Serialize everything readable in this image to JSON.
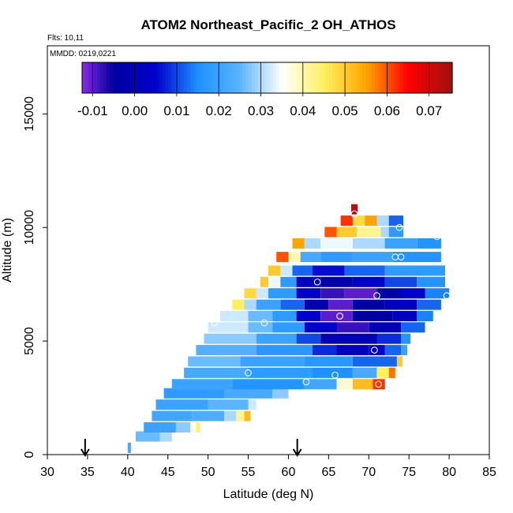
{
  "chart_data": {
    "type": "heatmap",
    "title": "ATOM2 Northeast_Pacific_2 OH_ATHOS",
    "flights_text": "Flts: 10,11",
    "mmdd_text": "MMDD: 0219,0221",
    "xlabel": "Latitude (deg N)",
    "ylabel": "Altitude (m)",
    "xlim": [
      30,
      85
    ],
    "ylim": [
      0,
      18000
    ],
    "x_ticks": [
      "30",
      "35",
      "40",
      "45",
      "50",
      "55",
      "60",
      "65",
      "70",
      "75",
      "80",
      "85"
    ],
    "y_ticks": [
      "0",
      "5000",
      "10000",
      "15000"
    ],
    "colorbar": {
      "range": [
        -0.0125,
        0.0755
      ],
      "ticks": [
        "-0.01",
        "0.00",
        "0.01",
        "0.02",
        "0.03",
        "0.04",
        "0.05",
        "0.06",
        "0.07"
      ],
      "colors": [
        "#8a2be2",
        "#0000a0",
        "#0000cd",
        "#1e90ff",
        "#5ab4ff",
        "#ffffff",
        "#fff060",
        "#ffa500",
        "#ff0000",
        "#a01010"
      ],
      "color_stops": [
        -0.0125,
        -0.005,
        0.005,
        0.015,
        0.025,
        0.035,
        0.045,
        0.055,
        0.065,
        0.0755
      ]
    },
    "flight_markers_latitude": [
      34.7,
      61.1
    ],
    "rows": [
      {
        "alt": 300,
        "segments": [
          {
            "lat": [
              40.0,
              40.4
            ],
            "value": 0.022
          }
        ]
      },
      {
        "alt": 800,
        "segments": [
          {
            "lat": [
              41.0,
              44.0
            ],
            "value": 0.026
          },
          {
            "lat": [
              44.0,
              45.5
            ],
            "value": 0.03
          }
        ]
      },
      {
        "alt": 1200,
        "segments": [
          {
            "lat": [
              42.0,
              46.0
            ],
            "value": 0.02
          },
          {
            "lat": [
              46.0,
              47.8
            ],
            "value": 0.028
          },
          {
            "lat": [
              47.8,
              48.5
            ],
            "value": 0.036
          },
          {
            "lat": [
              48.5,
              49.0
            ],
            "value": 0.044
          }
        ]
      },
      {
        "alt": 1700,
        "segments": [
          {
            "lat": [
              43.0,
              48.0
            ],
            "value": 0.021
          },
          {
            "lat": [
              48.0,
              52.0
            ],
            "value": 0.023
          },
          {
            "lat": [
              52.0,
              53.5
            ],
            "value": 0.03
          },
          {
            "lat": [
              53.5,
              54.5
            ],
            "value": 0.042
          },
          {
            "lat": [
              54.5,
              55.3
            ],
            "value": 0.052
          }
        ]
      },
      {
        "alt": 2200,
        "segments": [
          {
            "lat": [
              43.5,
              50.0
            ],
            "value": 0.02
          },
          {
            "lat": [
              50.0,
              55.0
            ],
            "value": 0.025
          },
          {
            "lat": [
              55.0,
              56.0
            ],
            "value": 0.032
          }
        ]
      },
      {
        "alt": 2700,
        "segments": [
          {
            "lat": [
              44.5,
              52.0
            ],
            "value": 0.018
          },
          {
            "lat": [
              52.0,
              58.0
            ],
            "value": 0.022
          },
          {
            "lat": [
              58.0,
              60.0
            ],
            "value": 0.028
          }
        ]
      },
      {
        "alt": 3100,
        "segments": [
          {
            "lat": [
              45.5,
              53.0
            ],
            "value": 0.02
          },
          {
            "lat": [
              53.0,
              62.0
            ],
            "value": 0.016
          },
          {
            "lat": [
              62.0,
              66.0
            ],
            "value": 0.021
          },
          {
            "lat": [
              66.0,
              68.0
            ],
            "value": 0.038
          },
          {
            "lat": [
              68.0,
              70.5
            ],
            "value": 0.052
          },
          {
            "lat": [
              70.5,
              72.0
            ],
            "value": 0.062
          }
        ]
      },
      {
        "alt": 3600,
        "segments": [
          {
            "lat": [
              47.0,
              55.0
            ],
            "value": 0.022
          },
          {
            "lat": [
              55.0,
              63.0
            ],
            "value": 0.018
          },
          {
            "lat": [
              63.0,
              68.0
            ],
            "value": 0.015
          },
          {
            "lat": [
              68.0,
              71.0
            ],
            "value": 0.022
          },
          {
            "lat": [
              71.0,
              72.5
            ],
            "value": 0.045
          },
          {
            "lat": [
              72.5,
              73.3
            ],
            "value": 0.058
          }
        ]
      },
      {
        "alt": 4100,
        "segments": [
          {
            "lat": [
              47.5,
              54.0
            ],
            "value": 0.026
          },
          {
            "lat": [
              54.0,
              62.0
            ],
            "value": 0.02
          },
          {
            "lat": [
              62.0,
              68.0
            ],
            "value": 0.017
          },
          {
            "lat": [
              68.0,
              73.5
            ],
            "value": 0.012
          },
          {
            "lat": [
              73.5,
              74.2
            ],
            "value": 0.05
          }
        ]
      },
      {
        "alt": 4600,
        "segments": [
          {
            "lat": [
              48.5,
              56.0
            ],
            "value": 0.024
          },
          {
            "lat": [
              56.0,
              63.0
            ],
            "value": 0.017
          },
          {
            "lat": [
              63.0,
              66.0
            ],
            "value": 0.008
          },
          {
            "lat": [
              66.0,
              70.0
            ],
            "value": 0.002
          },
          {
            "lat": [
              70.0,
              72.0
            ],
            "value": 0.005
          },
          {
            "lat": [
              72.0,
              74.0
            ],
            "value": 0.012
          },
          {
            "lat": [
              74.0,
              74.8
            ],
            "value": 0.02
          }
        ]
      },
      {
        "alt": 5100,
        "segments": [
          {
            "lat": [
              49.5,
              56.0
            ],
            "value": 0.028
          },
          {
            "lat": [
              56.0,
              61.0
            ],
            "value": 0.02
          },
          {
            "lat": [
              61.0,
              64.0
            ],
            "value": 0.01
          },
          {
            "lat": [
              64.0,
              71.0
            ],
            "value": 0.0
          },
          {
            "lat": [
              71.0,
              74.0
            ],
            "value": 0.008
          },
          {
            "lat": [
              74.0,
              75.2
            ],
            "value": 0.016
          }
        ]
      },
      {
        "alt": 5600,
        "segments": [
          {
            "lat": [
              50.0,
              55.0
            ],
            "value": 0.032
          },
          {
            "lat": [
              55.0,
              58.0
            ],
            "value": 0.026
          },
          {
            "lat": [
              58.0,
              62.0
            ],
            "value": 0.018
          },
          {
            "lat": [
              62.0,
              66.0
            ],
            "value": 0.004
          },
          {
            "lat": [
              66.0,
              70.0
            ],
            "value": -0.008
          },
          {
            "lat": [
              70.0,
              74.0
            ],
            "value": -0.001
          },
          {
            "lat": [
              74.0,
              77.0
            ],
            "value": 0.012
          }
        ]
      },
      {
        "alt": 6100,
        "segments": [
          {
            "lat": [
              51.5,
              55.0
            ],
            "value": 0.032
          },
          {
            "lat": [
              55.0,
              58.0
            ],
            "value": 0.026
          },
          {
            "lat": [
              58.0,
              61.0
            ],
            "value": 0.018
          },
          {
            "lat": [
              61.0,
              64.0
            ],
            "value": 0.005
          },
          {
            "lat": [
              64.0,
              68.0
            ],
            "value": -0.01
          },
          {
            "lat": [
              68.0,
              73.0
            ],
            "value": -0.005
          },
          {
            "lat": [
              73.0,
              76.0
            ],
            "value": 0.002
          },
          {
            "lat": [
              76.0,
              78.0
            ],
            "value": 0.014
          }
        ]
      },
      {
        "alt": 6600,
        "segments": [
          {
            "lat": [
              53.0,
              54.5
            ],
            "value": 0.045
          },
          {
            "lat": [
              54.5,
              56.0
            ],
            "value": 0.03
          },
          {
            "lat": [
              56.0,
              59.0
            ],
            "value": 0.02
          },
          {
            "lat": [
              59.0,
              62.0
            ],
            "value": 0.012
          },
          {
            "lat": [
              62.0,
              65.0
            ],
            "value": -0.002
          },
          {
            "lat": [
              65.0,
              68.0
            ],
            "value": -0.01
          },
          {
            "lat": [
              68.0,
              72.0
            ],
            "value": -0.003
          },
          {
            "lat": [
              72.0,
              76.0
            ],
            "value": 0.003
          },
          {
            "lat": [
              76.0,
              79.0
            ],
            "value": 0.012
          }
        ]
      },
      {
        "alt": 7100,
        "segments": [
          {
            "lat": [
              54.5,
              56.0
            ],
            "value": 0.048
          },
          {
            "lat": [
              56.0,
              57.5
            ],
            "value": 0.032
          },
          {
            "lat": [
              57.5,
              61.0
            ],
            "value": 0.018
          },
          {
            "lat": [
              61.0,
              64.0
            ],
            "value": 0.004
          },
          {
            "lat": [
              64.0,
              67.0
            ],
            "value": -0.008
          },
          {
            "lat": [
              67.0,
              71.0
            ],
            "value": -0.01
          },
          {
            "lat": [
              71.0,
              74.0
            ],
            "value": -0.003
          },
          {
            "lat": [
              74.0,
              77.0
            ],
            "value": 0.005
          },
          {
            "lat": [
              77.0,
              80.0
            ],
            "value": 0.014
          }
        ]
      },
      {
        "alt": 7600,
        "segments": [
          {
            "lat": [
              56.5,
              57.5
            ],
            "value": 0.05
          },
          {
            "lat": [
              57.5,
              59.0
            ],
            "value": 0.034
          },
          {
            "lat": [
              59.0,
              61.0
            ],
            "value": 0.018
          },
          {
            "lat": [
              61.0,
              64.0
            ],
            "value": 0.003
          },
          {
            "lat": [
              64.0,
              68.0
            ],
            "value": -0.002
          },
          {
            "lat": [
              68.0,
              72.0
            ],
            "value": 0.005
          },
          {
            "lat": [
              72.0,
              76.0
            ],
            "value": 0.01
          },
          {
            "lat": [
              76.0,
              79.5
            ],
            "value": 0.016
          }
        ]
      },
      {
        "alt": 8100,
        "segments": [
          {
            "lat": [
              57.5,
              59.0
            ],
            "value": 0.05
          },
          {
            "lat": [
              59.0,
              60.5
            ],
            "value": 0.032
          },
          {
            "lat": [
              60.5,
              63.0
            ],
            "value": 0.012
          },
          {
            "lat": [
              63.0,
              67.0
            ],
            "value": 0.006
          },
          {
            "lat": [
              67.0,
              72.0
            ],
            "value": 0.012
          },
          {
            "lat": [
              72.0,
              79.5
            ],
            "value": 0.018
          }
        ]
      },
      {
        "alt": 8700,
        "segments": [
          {
            "lat": [
              58.5,
              60.0
            ],
            "value": 0.06
          },
          {
            "lat": [
              60.0,
              61.5
            ],
            "value": 0.04
          },
          {
            "lat": [
              61.5,
              64.0
            ],
            "value": 0.022
          },
          {
            "lat": [
              64.0,
              68.0
            ],
            "value": 0.018
          },
          {
            "lat": [
              68.0,
              73.0
            ],
            "value": 0.02
          },
          {
            "lat": [
              73.0,
              79.0
            ],
            "value": 0.016
          }
        ]
      },
      {
        "alt": 9300,
        "segments": [
          {
            "lat": [
              60.5,
              62.0
            ],
            "value": 0.055
          },
          {
            "lat": [
              62.0,
              64.0
            ],
            "value": 0.03
          },
          {
            "lat": [
              64.0,
              68.0
            ],
            "value": 0.034
          },
          {
            "lat": [
              68.0,
              72.0
            ],
            "value": 0.03
          },
          {
            "lat": [
              72.0,
              76.0
            ],
            "value": 0.02
          },
          {
            "lat": [
              76.0,
              79.0
            ],
            "value": 0.016
          }
        ]
      },
      {
        "alt": 9800,
        "segments": [
          {
            "lat": [
              64.5,
              66.0
            ],
            "value": 0.06
          },
          {
            "lat": [
              66.0,
              68.5
            ],
            "value": 0.05
          },
          {
            "lat": [
              68.5,
              71.5
            ],
            "value": 0.042
          },
          {
            "lat": [
              71.5,
              72.5
            ],
            "value": 0.03
          },
          {
            "lat": [
              72.5,
              74.3
            ],
            "value": 0.018
          }
        ]
      },
      {
        "alt": 10300,
        "segments": [
          {
            "lat": [
              66.5,
              68.0
            ],
            "value": 0.062
          },
          {
            "lat": [
              68.0,
              69.5
            ],
            "value": 0.048
          },
          {
            "lat": [
              69.5,
              71.0
            ],
            "value": 0.055
          },
          {
            "lat": [
              71.0,
              72.5
            ],
            "value": 0.03
          },
          {
            "lat": [
              72.5,
              74.3
            ],
            "value": 0.012
          }
        ]
      },
      {
        "alt": 10800,
        "segments": [
          {
            "lat": [
              67.8,
              68.6
            ],
            "value": 0.072
          }
        ]
      }
    ],
    "samples": [
      {
        "lat": 50.8,
        "alt": 5800
      },
      {
        "lat": 57.0,
        "alt": 5800
      },
      {
        "lat": 55.0,
        "alt": 3600
      },
      {
        "lat": 62.2,
        "alt": 3200
      },
      {
        "lat": 65.8,
        "alt": 3500
      },
      {
        "lat": 71.2,
        "alt": 3100
      },
      {
        "lat": 70.7,
        "alt": 4600
      },
      {
        "lat": 66.4,
        "alt": 6100
      },
      {
        "lat": 71.0,
        "alt": 7000
      },
      {
        "lat": 63.6,
        "alt": 7600
      },
      {
        "lat": 73.3,
        "alt": 8700
      },
      {
        "lat": 74.0,
        "alt": 8700
      },
      {
        "lat": 79.7,
        "alt": 7000
      },
      {
        "lat": 78.5,
        "alt": 9600
      },
      {
        "lat": 73.8,
        "alt": 10000
      },
      {
        "lat": 68.2,
        "alt": 10600
      }
    ]
  }
}
